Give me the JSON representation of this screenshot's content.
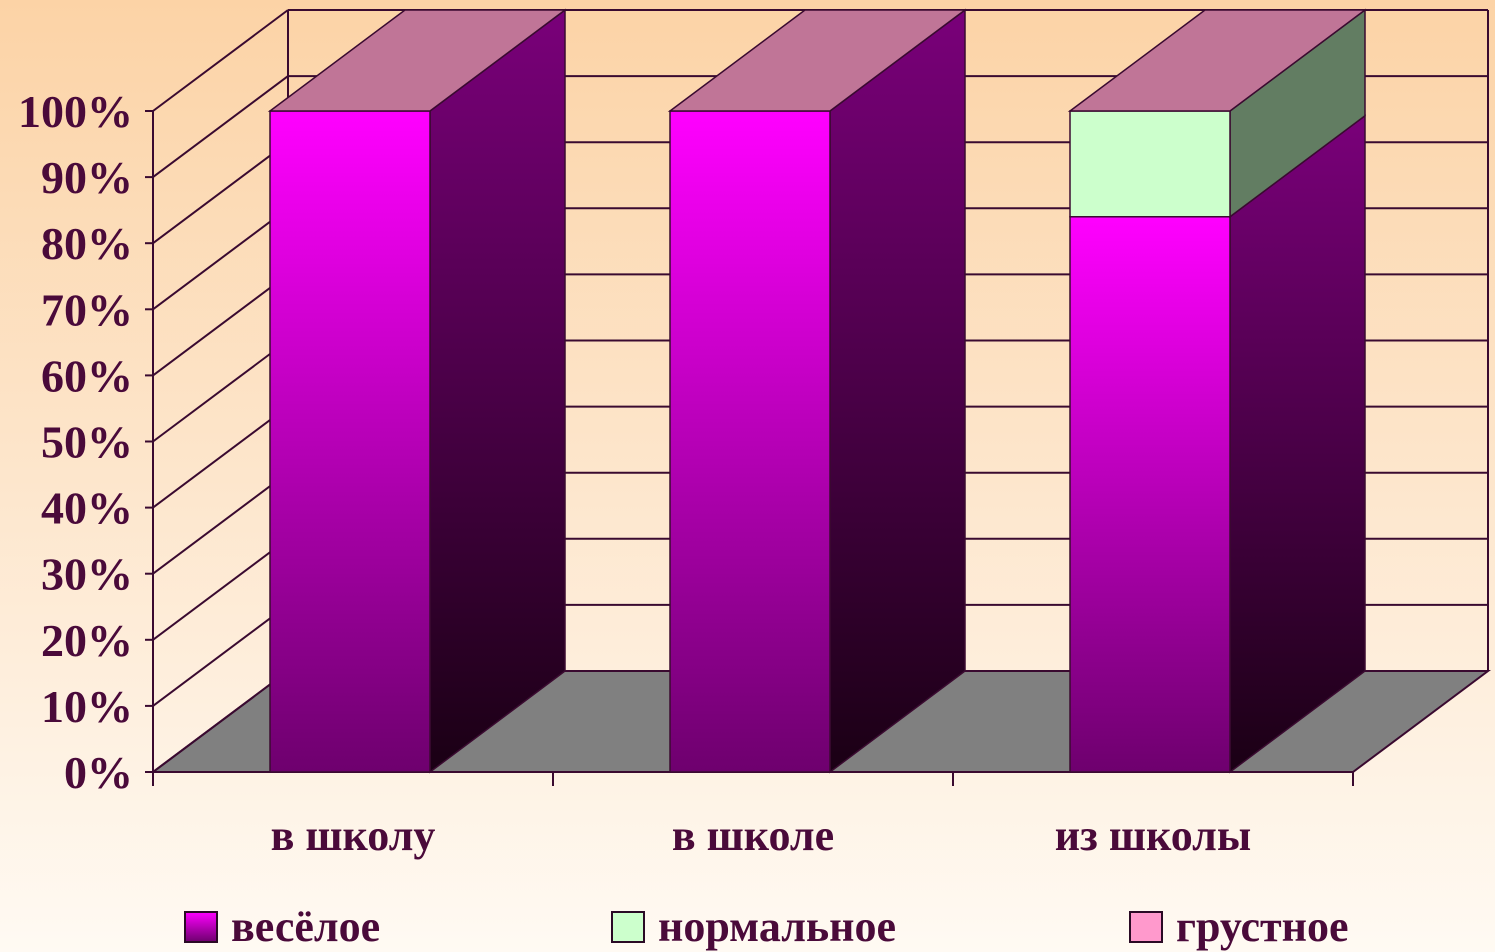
{
  "chart_data": {
    "type": "bar",
    "stacked": true,
    "percent": true,
    "three_d": true,
    "categories": [
      "в школу",
      "в школе",
      "из школы"
    ],
    "series": [
      {
        "name": "весёлое",
        "values": [
          100,
          100,
          84
        ],
        "color": "#ff00ff"
      },
      {
        "name": "нормальное",
        "values": [
          0,
          0,
          16
        ],
        "color": "#ccffcc"
      },
      {
        "name": "грустное",
        "values": [
          0,
          0,
          0
        ],
        "color": "#ff99cc"
      }
    ],
    "y_ticks": [
      "0%",
      "10%",
      "20%",
      "30%",
      "40%",
      "50%",
      "60%",
      "70%",
      "80%",
      "90%",
      "100%"
    ],
    "ylim": [
      0,
      100
    ],
    "grid": true,
    "legend_position": "bottom",
    "title": "",
    "xlabel": "",
    "ylabel": ""
  }
}
